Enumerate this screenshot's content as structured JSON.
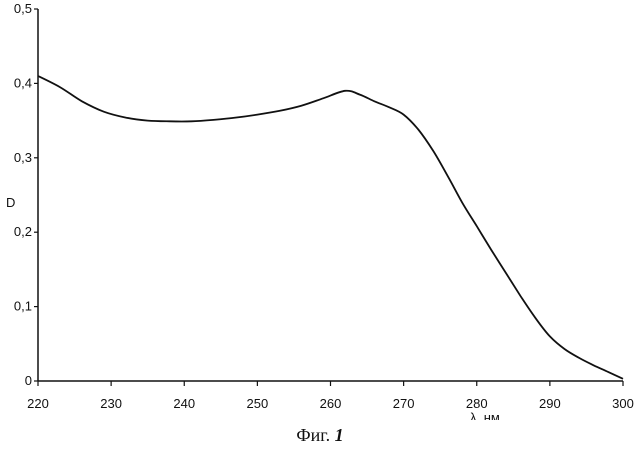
{
  "chart_data": {
    "type": "line",
    "ylabel": "D",
    "xlabel": "λ, нм",
    "xlim": [
      220,
      300
    ],
    "ylim": [
      0,
      0.5
    ],
    "x_ticks": [
      220,
      230,
      240,
      250,
      260,
      270,
      280,
      290,
      300
    ],
    "x_tick_labels": [
      "220",
      "230",
      "240",
      "250",
      "260",
      "270",
      "280",
      "290",
      "300"
    ],
    "y_ticks": [
      0,
      0.1,
      0.2,
      0.3,
      0.4,
      0.5
    ],
    "y_tick_labels": [
      "0",
      "0,1",
      "0,2",
      "0,3",
      "0,4",
      "0,5"
    ],
    "grid": false,
    "series": [
      {
        "x": [
          220,
          223,
          226,
          229,
          232,
          235,
          238,
          241,
          244,
          247,
          250,
          253,
          256,
          259,
          262,
          264,
          266,
          268,
          270,
          272,
          274,
          276,
          278,
          280,
          282,
          284,
          286,
          288,
          290,
          292,
          294,
          296,
          298,
          300
        ],
        "values": [
          0.41,
          0.395,
          0.376,
          0.362,
          0.354,
          0.35,
          0.349,
          0.349,
          0.351,
          0.354,
          0.358,
          0.363,
          0.37,
          0.38,
          0.39,
          0.385,
          0.376,
          0.368,
          0.358,
          0.338,
          0.31,
          0.276,
          0.24,
          0.208,
          0.176,
          0.145,
          0.114,
          0.085,
          0.06,
          0.043,
          0.031,
          0.021,
          0.012,
          0.003
        ]
      }
    ]
  },
  "caption": {
    "prefix": "Фиг.",
    "number": "1"
  }
}
